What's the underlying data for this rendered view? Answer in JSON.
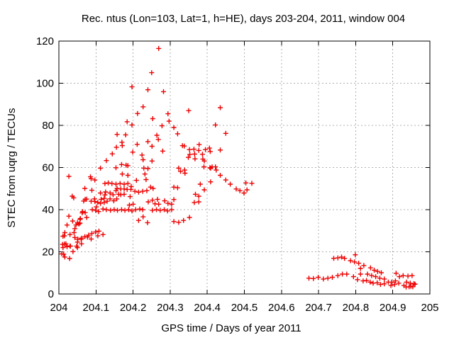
{
  "chart_data": {
    "type": "scatter",
    "title": "Rec. ntus (Lon=103, Lat=1, h=HE), days 203-204, 2011, window 004",
    "xlabel": "GPS time / Days of year 2011",
    "ylabel": "STEC from uqrg / TECUs",
    "xlim": [
      204,
      205
    ],
    "ylim": [
      0,
      120
    ],
    "xtick_values": [
      204,
      204.1,
      204.2,
      204.3,
      204.4,
      204.5,
      204.6,
      204.7,
      204.8,
      204.9,
      205
    ],
    "xtick_labels": [
      "204",
      "204.1",
      "204.2",
      "204.3",
      "204.4",
      "204.5",
      "204.6",
      "204.7",
      "204.8",
      "204.9",
      "205"
    ],
    "ytick_values": [
      0,
      20,
      40,
      60,
      80,
      100,
      120
    ],
    "ytick_labels": [
      "0",
      "20",
      "40",
      "60",
      "80",
      "100",
      "120"
    ],
    "grid": true,
    "legend": "none",
    "marker": "plus",
    "marker_color": "#ee0000",
    "grid_color": "#b0b0b0",
    "border_color": "#000000",
    "text_color": "#000000",
    "background": "#ffffff",
    "series": [
      {
        "name": "STEC",
        "points": [
          [
            204.008,
            19
          ],
          [
            204.01,
            23.5
          ],
          [
            204.011,
            27.4
          ],
          [
            204.011,
            22
          ],
          [
            204.013,
            18.9
          ],
          [
            204.015,
            27.6
          ],
          [
            204.015,
            23.7
          ],
          [
            204.016,
            29.1
          ],
          [
            204.016,
            17.5
          ],
          [
            204.019,
            23.8
          ],
          [
            204.022,
            32.7
          ],
          [
            204.022,
            22.4
          ],
          [
            204.027,
            36.9
          ],
          [
            204.027,
            55.8
          ],
          [
            204.029,
            16.8
          ],
          [
            204.03,
            28.2
          ],
          [
            204.03,
            22.8
          ],
          [
            204.031,
            22.7
          ],
          [
            204.036,
            46.4
          ],
          [
            204.037,
            34.6
          ],
          [
            204.038,
            20.1
          ],
          [
            204.04,
            45.6
          ],
          [
            204.041,
            29.1
          ],
          [
            204.043,
            26.8
          ],
          [
            204.043,
            31
          ],
          [
            204.046,
            32.7
          ],
          [
            204.048,
            22.7
          ],
          [
            204.05,
            24.6
          ],
          [
            204.05,
            22
          ],
          [
            204.05,
            33.8
          ],
          [
            204.051,
            26
          ],
          [
            204.054,
            33.2
          ],
          [
            204.057,
            35.4
          ],
          [
            204.057,
            33.6
          ],
          [
            204.058,
            35.8
          ],
          [
            204.06,
            25.9
          ],
          [
            204.061,
            26.5
          ],
          [
            204.061,
            23.8
          ],
          [
            204.063,
            38.5
          ],
          [
            204.064,
            39.1
          ],
          [
            204.067,
            44.1
          ],
          [
            204.07,
            27.2
          ],
          [
            204.07,
            50.1
          ],
          [
            204.071,
            38.6
          ],
          [
            204.071,
            44.9
          ],
          [
            204.075,
            45
          ],
          [
            204.075,
            36.3
          ],
          [
            204.077,
            27
          ],
          [
            204.08,
            27.9
          ],
          [
            204.085,
            55.6
          ],
          [
            204.087,
            54.7
          ],
          [
            204.087,
            44
          ],
          [
            204.087,
            26.1
          ],
          [
            204.089,
            49.2
          ],
          [
            204.089,
            28.7
          ],
          [
            204.09,
            40
          ],
          [
            204.096,
            45.1
          ],
          [
            204.097,
            54.1
          ],
          [
            204.097,
            43.9
          ],
          [
            204.099,
            29.4
          ],
          [
            204.099,
            39.7
          ],
          [
            204.101,
            41.3
          ],
          [
            204.105,
            43.4
          ],
          [
            204.105,
            27.6
          ],
          [
            204.107,
            39.1
          ],
          [
            204.108,
            29.8
          ],
          [
            204.112,
            47.9
          ],
          [
            204.112,
            59.7
          ],
          [
            204.112,
            43
          ],
          [
            204.114,
            44.9
          ],
          [
            204.119,
            28.2
          ],
          [
            204.119,
            40.3
          ],
          [
            204.122,
            43.4
          ],
          [
            204.122,
            45.3
          ],
          [
            204.124,
            52.4
          ],
          [
            204.124,
            47
          ],
          [
            204.126,
            48.4
          ],
          [
            204.128,
            63.3
          ],
          [
            204.128,
            40
          ],
          [
            204.13,
            44
          ],
          [
            204.133,
            52.7
          ],
          [
            204.138,
            45.1
          ],
          [
            204.138,
            47.9
          ],
          [
            204.139,
            39.7
          ],
          [
            204.143,
            52.4
          ],
          [
            204.144,
            66.5
          ],
          [
            204.146,
            47.1
          ],
          [
            204.148,
            44.2
          ],
          [
            204.149,
            40
          ],
          [
            204.154,
            52.1
          ],
          [
            204.154,
            49
          ],
          [
            204.154,
            59.9
          ],
          [
            204.155,
            69.6
          ],
          [
            204.156,
            45.1
          ],
          [
            204.157,
            75.7
          ],
          [
            204.157,
            50.1
          ],
          [
            204.158,
            39.7
          ],
          [
            204.161,
            47.3
          ],
          [
            204.165,
            52.4
          ],
          [
            204.167,
            49.8
          ],
          [
            204.167,
            47.1
          ],
          [
            204.169,
            61.4
          ],
          [
            204.169,
            40
          ],
          [
            204.17,
            72
          ],
          [
            204.171,
            70.4
          ],
          [
            204.171,
            56.9
          ],
          [
            204.176,
            49.8
          ],
          [
            204.176,
            52.1
          ],
          [
            204.176,
            47.3
          ],
          [
            204.178,
            39.7
          ],
          [
            204.18,
            75.5
          ],
          [
            204.181,
            61.1
          ],
          [
            204.184,
            81.7
          ],
          [
            204.184,
            49.6
          ],
          [
            204.186,
            60.9
          ],
          [
            204.186,
            56.3
          ],
          [
            204.186,
            52.4
          ],
          [
            204.188,
            40
          ],
          [
            204.19,
            42.2
          ],
          [
            204.192,
            46.2
          ],
          [
            204.194,
            49.6
          ],
          [
            204.195,
            51
          ],
          [
            204.197,
            98.3
          ],
          [
            204.197,
            80.2
          ],
          [
            204.197,
            39.4
          ],
          [
            204.199,
            67.3
          ],
          [
            204.2,
            42.6
          ],
          [
            204.205,
            48.7
          ],
          [
            204.207,
            40
          ],
          [
            204.209,
            53.9
          ],
          [
            204.212,
            85.6
          ],
          [
            204.211,
            71
          ],
          [
            204.215,
            48.3
          ],
          [
            204.215,
            34.9
          ],
          [
            204.218,
            40.3
          ],
          [
            204.224,
            65.9
          ],
          [
            204.226,
            48.7
          ],
          [
            204.226,
            40
          ],
          [
            204.227,
            88.8
          ],
          [
            204.227,
            63.7
          ],
          [
            204.227,
            36.6
          ],
          [
            204.229,
            59.7
          ],
          [
            204.232,
            56.9
          ],
          [
            204.235,
            54.3
          ],
          [
            204.237,
            49
          ],
          [
            204.239,
            33.8
          ],
          [
            204.24,
            96.9
          ],
          [
            204.24,
            72.3
          ],
          [
            204.24,
            59.5
          ],
          [
            204.241,
            43.7
          ],
          [
            204.247,
            50.7
          ],
          [
            204.25,
            105
          ],
          [
            204.251,
            70.1
          ],
          [
            204.251,
            63.1
          ],
          [
            204.252,
            39.7
          ],
          [
            204.252,
            44.5
          ],
          [
            204.253,
            83.2
          ],
          [
            204.254,
            50.1
          ],
          [
            204.259,
            42.8
          ],
          [
            204.263,
            40
          ],
          [
            204.264,
            75.3
          ],
          [
            204.266,
            44.9
          ],
          [
            204.268,
            73.3
          ],
          [
            204.269,
            116.5
          ],
          [
            204.269,
            42.6
          ],
          [
            204.273,
            39.7
          ],
          [
            204.278,
            79.8
          ],
          [
            204.28,
            67.8
          ],
          [
            204.282,
            96
          ],
          [
            204.284,
            40
          ],
          [
            204.285,
            44.2
          ],
          [
            204.293,
            39.4
          ],
          [
            204.294,
            85.5
          ],
          [
            204.294,
            43
          ],
          [
            204.297,
            82
          ],
          [
            204.304,
            42.6
          ],
          [
            204.304,
            40
          ],
          [
            204.31,
            79
          ],
          [
            204.31,
            50.7
          ],
          [
            204.31,
            44.8
          ],
          [
            204.31,
            34.4
          ],
          [
            204.32,
            76
          ],
          [
            204.32,
            50.4
          ],
          [
            204.323,
            34
          ],
          [
            204.323,
            59.7
          ],
          [
            204.328,
            58.2
          ],
          [
            204.333,
            70.4
          ],
          [
            204.338,
            70.2
          ],
          [
            204.336,
            34.9
          ],
          [
            204.339,
            58.8
          ],
          [
            204.34,
            57.3
          ],
          [
            204.349,
            64.8
          ],
          [
            204.35,
            87
          ],
          [
            204.352,
            36.3
          ],
          [
            204.352,
            68.5
          ],
          [
            204.353,
            66.2
          ],
          [
            204.364,
            68.7
          ],
          [
            204.366,
            66.4
          ],
          [
            204.367,
            64.1
          ],
          [
            204.365,
            43.4
          ],
          [
            204.368,
            47.3
          ],
          [
            204.377,
            46.4
          ],
          [
            204.377,
            43.7
          ],
          [
            204.377,
            68.1
          ],
          [
            204.378,
            70.9
          ],
          [
            204.381,
            52.1
          ],
          [
            204.387,
            66.3
          ],
          [
            204.388,
            64
          ],
          [
            204.391,
            60.3
          ],
          [
            204.392,
            63.1
          ],
          [
            204.392,
            49.4
          ],
          [
            204.395,
            68.5
          ],
          [
            204.406,
            69.2
          ],
          [
            204.407,
            59.9
          ],
          [
            204.408,
            67.6
          ],
          [
            204.409,
            59.7
          ],
          [
            204.409,
            53.2
          ],
          [
            204.413,
            60.3
          ],
          [
            204.422,
            80.2
          ],
          [
            204.422,
            60.3
          ],
          [
            204.424,
            58.8
          ],
          [
            204.435,
            88.4
          ],
          [
            204.435,
            68.3
          ],
          [
            204.435,
            56.3
          ],
          [
            204.45,
            76.2
          ],
          [
            204.45,
            54.1
          ],
          [
            204.462,
            52.1
          ],
          [
            204.478,
            49.8
          ],
          [
            204.488,
            49
          ],
          [
            204.499,
            47.9
          ],
          [
            204.504,
            52.7
          ],
          [
            204.507,
            49.4
          ],
          [
            204.52,
            52.5
          ],
          [
            204.674,
            7.5
          ],
          [
            204.686,
            7.3
          ],
          [
            204.699,
            7.9
          ],
          [
            204.713,
            7.1
          ],
          [
            204.725,
            7.5
          ],
          [
            204.737,
            7.9
          ],
          [
            204.741,
            16.9
          ],
          [
            204.752,
            17.1
          ],
          [
            204.752,
            8.7
          ],
          [
            204.762,
            17.5
          ],
          [
            204.764,
            9.4
          ],
          [
            204.77,
            16.9
          ],
          [
            204.776,
            9.4
          ],
          [
            204.786,
            15.8
          ],
          [
            204.794,
            8.2
          ],
          [
            204.797,
            15.2
          ],
          [
            204.799,
            18.6
          ],
          [
            204.805,
            6.8
          ],
          [
            204.808,
            14.6
          ],
          [
            204.813,
            12.1
          ],
          [
            204.813,
            9.4
          ],
          [
            204.82,
            6.2
          ],
          [
            204.822,
            13.5
          ],
          [
            204.829,
            6.4
          ],
          [
            204.832,
            9.4
          ],
          [
            204.839,
            5.6
          ],
          [
            204.84,
            12.4
          ],
          [
            204.843,
            8.7
          ],
          [
            204.847,
            5.1
          ],
          [
            204.85,
            11.3
          ],
          [
            204.854,
            8.2
          ],
          [
            204.858,
            5.3
          ],
          [
            204.859,
            10.7
          ],
          [
            204.865,
            7.5
          ],
          [
            204.867,
            4.5
          ],
          [
            204.869,
            10.1
          ],
          [
            204.877,
            4.8
          ],
          [
            204.877,
            7.1
          ],
          [
            204.888,
            5.6
          ],
          [
            204.895,
            4
          ],
          [
            204.897,
            5.6
          ],
          [
            204.905,
            4.5
          ],
          [
            204.907,
            6.2
          ],
          [
            204.909,
            9.8
          ],
          [
            204.916,
            5.1
          ],
          [
            204.918,
            8.2
          ],
          [
            204.928,
            8.7
          ],
          [
            204.93,
            4
          ],
          [
            204.936,
            3.3
          ],
          [
            204.937,
            5.6
          ],
          [
            204.941,
            8.5
          ],
          [
            204.944,
            3.4
          ],
          [
            204.947,
            5.1
          ],
          [
            204.949,
            3.6
          ],
          [
            204.952,
            8.7
          ],
          [
            204.954,
            3.4
          ],
          [
            204.957,
            4.9
          ],
          [
            204.96,
            4.6
          ]
        ]
      }
    ]
  }
}
